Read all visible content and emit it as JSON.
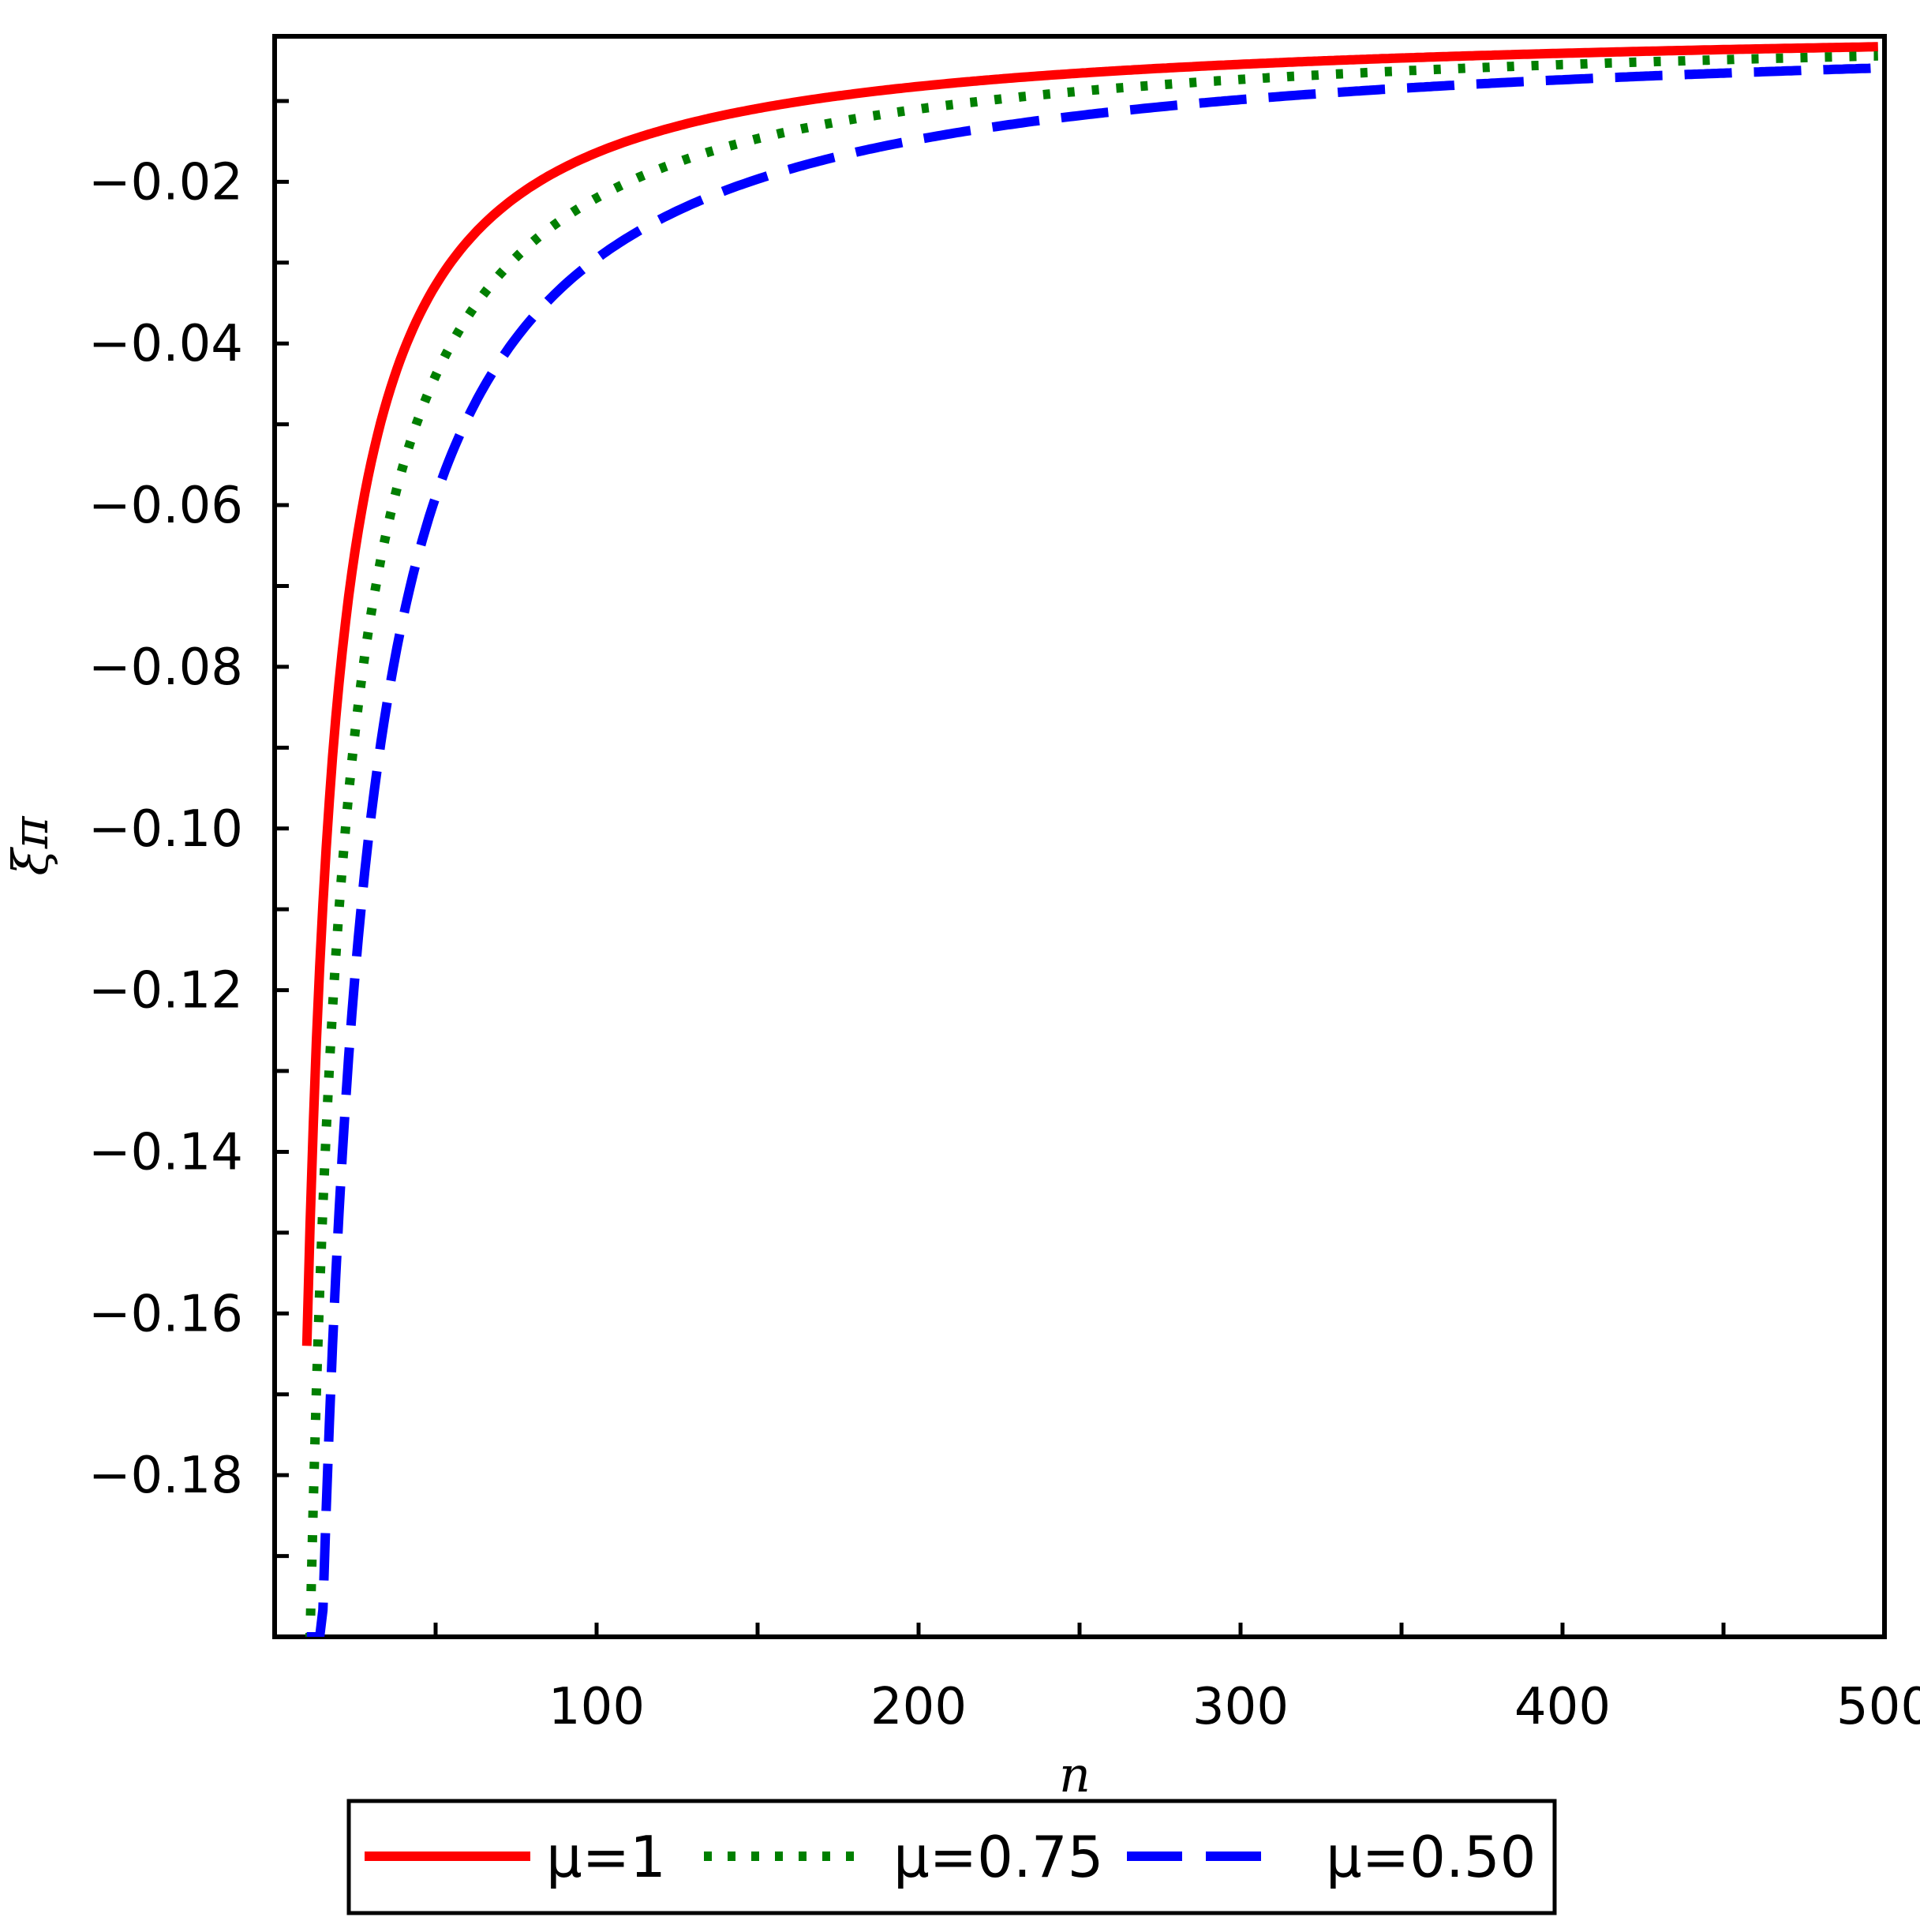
{
  "chart_data": {
    "type": "line",
    "xlabel": "n",
    "ylabel": "ξπ",
    "xlim": [
      0,
      500
    ],
    "ylim": [
      -0.2,
      -0.002
    ],
    "x_ticks": [
      100,
      200,
      300,
      400,
      500
    ],
    "x_tick_labels": [
      "100",
      "200",
      "300",
      "400",
      "500"
    ],
    "y_ticks": [
      -0.02,
      -0.04,
      -0.06,
      -0.08,
      -0.1,
      -0.12,
      -0.14,
      -0.16,
      -0.18
    ],
    "y_tick_labels": [
      "−0.02",
      "−0.04",
      "−0.06",
      "−0.08",
      "−0.10",
      "−0.12",
      "−0.14",
      "−0.16",
      "−0.18"
    ],
    "grid": false,
    "legend_position": "bottom",
    "series": [
      {
        "name": "μ=1",
        "style": "solid",
        "color": "#ff0000",
        "k": 1.64
      },
      {
        "name": "μ=0.75",
        "style": "dotted",
        "color": "#007f00",
        "k": 2.2
      },
      {
        "name": "μ=0.50",
        "style": "dashed",
        "color": "#0000ff",
        "k": 2.95
      }
    ],
    "x_start": 10,
    "x_end": 498,
    "formula": "y = -k / n"
  }
}
